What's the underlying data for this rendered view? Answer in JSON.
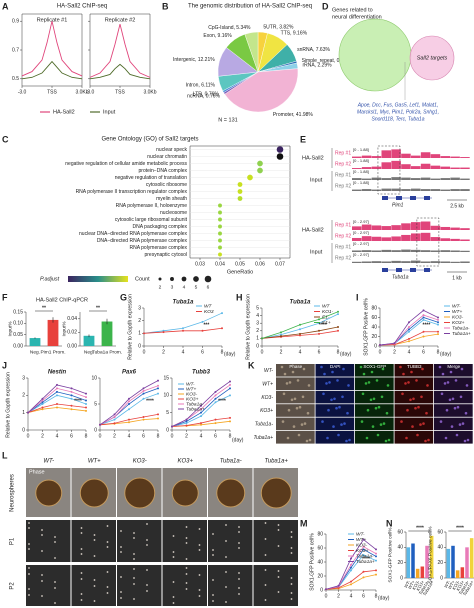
{
  "A": {
    "label": "A",
    "title": "HA-Sall2 ChIP-seq",
    "replicates": [
      "Replicate #1",
      "Replicate #2"
    ],
    "x": [
      -3,
      -2,
      -1,
      -0.5,
      0,
      0.5,
      1,
      2,
      3
    ],
    "xlim": [
      -3,
      3
    ],
    "xticks": [
      {
        "value": -3,
        "label": "-3.0"
      },
      {
        "value": 0,
        "label": "TSS"
      },
      {
        "value": 3,
        "label": "3.0Kb"
      }
    ],
    "ylim": [
      0.45,
      0.95
    ],
    "yticks": [
      0.5,
      0.7,
      0.9
    ],
    "series": [
      {
        "name": "HA-Sall2",
        "color": "#e0457b",
        "values": [
          [
            0.52,
            0.55,
            0.63,
            0.75,
            0.9,
            0.75,
            0.63,
            0.55,
            0.52
          ],
          [
            0.51,
            0.54,
            0.62,
            0.74,
            0.88,
            0.74,
            0.62,
            0.54,
            0.51
          ]
        ]
      },
      {
        "name": "Input",
        "color": "#4f6b2a",
        "values": [
          [
            0.5,
            0.51,
            0.54,
            0.58,
            0.62,
            0.58,
            0.54,
            0.51,
            0.5
          ],
          [
            0.5,
            0.51,
            0.53,
            0.57,
            0.6,
            0.57,
            0.53,
            0.51,
            0.5
          ]
        ]
      }
    ]
  },
  "B": {
    "label": "B",
    "type": "pie",
    "title": "The genomic distribution of HA-Sall2 ChIP-seq",
    "categories": [
      "5UTR",
      "TTS",
      "snRNA",
      "Simple_repeat",
      "rRNA",
      "Promoter",
      "ncRNA",
      "LTR",
      "Intron",
      "Intergenic",
      "Exon",
      "CpG-Island"
    ],
    "values": [
      3.82,
      9.16,
      7.63,
      0.76,
      2.29,
      41.98,
      0.76,
      0.76,
      6.11,
      12.21,
      9.16,
      5.34
    ],
    "value_labels": [
      "5UTR, 3.82%",
      "TTS, 9.16%",
      "snRNA, 7.63%",
      "Simple_repeat, 0.76%",
      "rRNA, 2.29%",
      "Promoter, 41.98%",
      "ncRNA, 0.76%",
      "LTR, 0.76%",
      "Intron, 6.11%",
      "Intergenic, 12.21%",
      "Exon, 9.16%",
      "CpG-Island, 5.34%"
    ],
    "colors": [
      "#f7d23e",
      "#f0e442",
      "#3fb0a8",
      "#2e6fb7",
      "#8ed1e8",
      "#f2b3d4",
      "#7a5cb8",
      "#4a90d9",
      "#5cc6c0",
      "#b8a9e3",
      "#7ac943",
      "#c3e68c"
    ],
    "total_label": "N = 131"
  },
  "C": {
    "label": "C",
    "title": "Gene Ontology (GO) of Sall2 targets",
    "categories": [
      "nuclear speck",
      "nuclear chromatin",
      "negative regulation of cellular amide metabolic process",
      "protein−DNA complex",
      "negative regulation of translation",
      "cytosolic ribosome",
      "RNA polymerase II transcription regulator complex",
      "myelin sheath",
      "RNA polymerase II, holoenzyme",
      "nucleosome",
      "cytosolic large ribosomal subunit",
      "DNA packaging complex",
      "nuclear DNA−directed RNA polymerase complex",
      "DNA−directed RNA polymerase complex",
      "RNA polymerase complex",
      "presynaptic cytosol"
    ],
    "values": [
      0.07,
      0.07,
      0.06,
      0.06,
      0.055,
      0.05,
      0.05,
      0.05,
      0.04,
      0.04,
      0.04,
      0.04,
      0.04,
      0.04,
      0.04,
      0.04
    ],
    "counts": [
      6,
      6,
      5,
      5,
      5,
      4,
      4,
      4,
      3,
      3,
      3,
      3,
      3,
      3,
      3,
      3
    ],
    "colors": [
      "#3b2460",
      "#111111",
      "#8fd14f",
      "#8fd14f",
      "#c8e020",
      "#c8e020",
      "#c8e020",
      "#b5de2b",
      "#9ad641",
      "#9ad641",
      "#9ad641",
      "#9ad641",
      "#9ad641",
      "#9ad641",
      "#9ad641",
      "#c8e020"
    ],
    "xlim": [
      0.025,
      0.075
    ],
    "xticks": [
      0.03,
      0.04,
      0.05,
      0.06,
      0.07
    ],
    "xlabel": "GeneRatio",
    "color_legend_title": "P.adjust",
    "size_legend_title": "Count",
    "size_legend": [
      2,
      3,
      4,
      5,
      6
    ]
  },
  "D": {
    "label": "D",
    "title_lines": [
      "Genes related to",
      "neural differentiation"
    ],
    "target_label": "Sall2 targets",
    "gene_lines": [
      "Apoe, Dcc, Fus, Gas5, Lef1, Malat1,",
      "Marcksl1, Myc, Pim1, Polr2a, Snhg1,",
      "Snord118, Terc, Tuba1a"
    ]
  },
  "E": {
    "label": "E",
    "groups": [
      {
        "factor": "HA-Sall2",
        "input": "Input",
        "gene": "Pim1",
        "scale": "2.5 kb",
        "ymax": 1.88,
        "tracks": [
          {
            "name": "Rep #1",
            "range": "[0 - 1.88]",
            "values": [
              0.3,
              0.5,
              0.4,
              1.6,
              1.8,
              0.9,
              0.5,
              1.2,
              0.8,
              0.4,
              0.3,
              0.2
            ]
          },
          {
            "name": "Rep #2",
            "range": "[0 - 1.88]",
            "values": [
              0.2,
              0.4,
              0.5,
              1.4,
              1.7,
              1,
              0.6,
              1.1,
              0.7,
              0.5,
              0.3,
              0.3
            ]
          },
          {
            "name": "Rep #1",
            "range": "[0 - 1.88]",
            "values": [
              0.4,
              0.3,
              0.5,
              0.4,
              0.6,
              0.5,
              0.4,
              0.5,
              0.3,
              0.4,
              0.5,
              0.3
            ]
          },
          {
            "name": "Rep #2",
            "range": "[0 - 1.88]",
            "values": [
              0.3,
              0.4,
              0.3,
              0.5,
              0.5,
              0.4,
              0.5,
              0.4,
              0.4,
              0.3,
              0.4,
              0.4
            ]
          }
        ]
      },
      {
        "factor": "HA-Sall2",
        "input": "Input",
        "gene": "Tuba1a",
        "scale": "1 kb",
        "ymax": 2.97,
        "tracks": [
          {
            "name": "Rep #1",
            "range": "[0 - 2.97]",
            "values": [
              1.2,
              1.8,
              1.5,
              1.3,
              1.6,
              2.2,
              2.6,
              2.8,
              1.4,
              1,
              0.8,
              0.6
            ]
          },
          {
            "name": "Rep #2",
            "range": "[0 - 2.97]",
            "values": [
              1,
              1.6,
              1.4,
              1.2,
              1.5,
              2,
              2.5,
              2.7,
              1.3,
              0.9,
              0.7,
              0.5
            ]
          },
          {
            "name": "Rep #1",
            "range": "[0 - 2.97]",
            "values": [
              0.5,
              0.6,
              0.5,
              0.7,
              0.6,
              0.8,
              0.7,
              0.6,
              0.5,
              0.6,
              0.5,
              0.4
            ]
          },
          {
            "name": "Rep #2",
            "range": "[0 - 2.97]",
            "values": [
              0.4,
              0.5,
              0.6,
              0.5,
              0.7,
              0.6,
              0.8,
              0.5,
              0.6,
              0.5,
              0.4,
              0.5
            ]
          }
        ]
      }
    ]
  },
  "F": {
    "label": "F",
    "title": "HA-Sall2 ChIP-qPCR",
    "charts": [
      {
        "ylabel": "Input%",
        "categories": [
          "Neg.",
          "Pim1 Prom."
        ],
        "values": [
          0.035,
          0.115
        ],
        "errors": [
          0.003,
          0.012
        ],
        "colors": [
          "#2bb5b0",
          "#e8413c"
        ],
        "ylim": [
          0,
          0.15
        ],
        "yticks": [
          {
            "value": 0,
            "label": "0.00"
          },
          0.05,
          {
            "value": 0.1,
            "label": "0.10"
          },
          0.15
        ],
        "annotation": "**"
      },
      {
        "ylabel": "Input%",
        "categories": [
          "Neg.",
          "Tuba1a Prom."
        ],
        "values": [
          0.015,
          0.036
        ],
        "errors": [
          0.002,
          0.004
        ],
        "colors": [
          "#2bb5b0",
          "#3cb44b"
        ],
        "ylim": [
          0,
          0.05
        ],
        "yticks": [
          {
            "value": 0,
            "label": "0.00"
          },
          0.02,
          0.04
        ],
        "annotation": "**"
      }
    ]
  },
  "G": {
    "label": "G",
    "title": "Tuba1a",
    "ylabel": "Relative to Gapdh expression",
    "xlabel": "(day)",
    "x": [
      0,
      2,
      4,
      6,
      8
    ],
    "xlim": [
      0,
      8
    ],
    "xticks": [
      0,
      2,
      4,
      6,
      8
    ],
    "ylim": [
      0,
      3
    ],
    "yticks": [
      0,
      1,
      2,
      3
    ],
    "annotation": "***",
    "series": [
      {
        "name": "WT",
        "color": "#5bb8e8",
        "values": [
          1,
          1.2,
          1.4,
          1.9,
          2.6
        ]
      },
      {
        "name": "KO3",
        "color": "#e8413c",
        "values": [
          1,
          1.1,
          1.2,
          1.2,
          1.4
        ]
      }
    ]
  },
  "H": {
    "label": "H",
    "title": "Tuba1a",
    "ylabel": "Relative to Gapdh expression",
    "xlabel": "(day)",
    "x": [
      0,
      2,
      4,
      6,
      8
    ],
    "xlim": [
      0,
      8
    ],
    "xticks": [
      0,
      2,
      4,
      6,
      8
    ],
    "ylim": [
      0,
      5
    ],
    "yticks": [
      0,
      1,
      2,
      3,
      4,
      5
    ],
    "annotation": "****",
    "series": [
      {
        "name": "WT",
        "color": "#5bb8e8",
        "values": [
          1,
          1.5,
          2.2,
          3,
          4.2
        ]
      },
      {
        "name": "KO1-",
        "color": "#e8413c",
        "values": [
          1,
          1.2,
          1.4,
          1.6,
          2
        ]
      },
      {
        "name": "E1-",
        "color": "#8b4513",
        "values": [
          1,
          1.3,
          1.6,
          2,
          2.5
        ]
      },
      {
        "name": "E1+",
        "color": "#3cb44b",
        "values": [
          1,
          1.8,
          2.8,
          3.5,
          4.5
        ]
      }
    ]
  },
  "I": {
    "label": "I",
    "ylabel": "SOX1-GFP Positive cell%",
    "xlabel": "(day)",
    "x": [
      0,
      2,
      4,
      6,
      8
    ],
    "xlim": [
      0,
      8
    ],
    "xticks": [
      0,
      2,
      4,
      6,
      8
    ],
    "ylim": [
      0,
      80
    ],
    "yticks": [
      0,
      20,
      40,
      60,
      80
    ],
    "annotation": "****",
    "series": [
      {
        "name": "WT-",
        "color": "#5bb8e8",
        "values": [
          2,
          5,
          30,
          55,
          45
        ]
      },
      {
        "name": "WT+",
        "color": "#1f5fbf",
        "values": [
          2,
          5,
          35,
          60,
          50
        ]
      },
      {
        "name": "KO3-",
        "color": "#f5a623",
        "values": [
          2,
          3,
          10,
          20,
          25
        ]
      },
      {
        "name": "KO3+",
        "color": "#e8413c",
        "values": [
          2,
          3,
          15,
          30,
          30
        ]
      },
      {
        "name": "Tuba1a-",
        "color": "#e87ab8",
        "values": [
          2,
          5,
          40,
          65,
          55
        ]
      },
      {
        "name": "Tuba1a+",
        "color": "#7b3fa0",
        "values": [
          2,
          6,
          50,
          75,
          60
        ]
      }
    ]
  },
  "J": {
    "label": "J",
    "ylabel": "Relative to Gapdh expression",
    "xlabel": "(day)",
    "x": [
      0,
      2,
      4,
      6,
      8
    ],
    "xlim": [
      0,
      8
    ],
    "xticks": [
      0,
      2,
      4,
      6,
      8
    ],
    "series": [
      {
        "name": "WT-",
        "color": "#5bb8e8"
      },
      {
        "name": "WT+",
        "color": "#1f5fbf"
      },
      {
        "name": "KO3-",
        "color": "#f5a623"
      },
      {
        "name": "KO3+",
        "color": "#e8413c"
      },
      {
        "name": "Tuba1a-",
        "color": "#e87ab8"
      },
      {
        "name": "Tuba1a+",
        "color": "#7b3fa0"
      }
    ],
    "charts": [
      {
        "title": "Nestin",
        "ylim": [
          0,
          3
        ],
        "yticks": [
          0,
          1,
          2,
          3
        ],
        "annotation": "****",
        "values": [
          [
            1,
            1.5,
            2,
            1.8,
            1.5
          ],
          [
            1,
            1.6,
            2.2,
            2,
            1.7
          ],
          [
            1,
            1.2,
            1.3,
            1.2,
            1.1
          ],
          [
            1,
            1.3,
            1.5,
            1.4,
            1.3
          ],
          [
            1,
            1.7,
            2.4,
            2.2,
            1.9
          ],
          [
            1,
            1.8,
            2.6,
            2.4,
            2.1
          ]
        ]
      },
      {
        "title": "Pax6",
        "ylim": [
          0,
          10
        ],
        "yticks": [
          0,
          5,
          10
        ],
        "annotation": "****",
        "values": [
          [
            1,
            2,
            4,
            6,
            7
          ],
          [
            1,
            2.5,
            5,
            7,
            8
          ],
          [
            1,
            1.2,
            1.5,
            2,
            2.2
          ],
          [
            1,
            1.3,
            2,
            2.5,
            3
          ],
          [
            1,
            2.5,
            5.5,
            7.5,
            8.5
          ],
          [
            1,
            3,
            6,
            8,
            9.5
          ]
        ]
      },
      {
        "title": "Tubb3",
        "ylim": [
          0,
          15
        ],
        "yticks": [
          0,
          5,
          10,
          15
        ],
        "annotation": "****",
        "values": [
          [
            1,
            2,
            4,
            8,
            10
          ],
          [
            1,
            2.5,
            5,
            9,
            12
          ],
          [
            1,
            1.2,
            1.5,
            2,
            2.5
          ],
          [
            1,
            1.3,
            2,
            3,
            3.5
          ],
          [
            1,
            3,
            6,
            10,
            13
          ],
          [
            1,
            3,
            7,
            11,
            14
          ]
        ]
      }
    ]
  },
  "K": {
    "label": "K",
    "columns": [
      "Phase",
      "DAPI",
      "SOX1-GFP",
      "TUBB3",
      "Merge"
    ],
    "rows": [
      "WT-",
      "WT+",
      "KO3-",
      "KO3+",
      "Tuba1a-",
      "Tuba1a+"
    ]
  },
  "L": {
    "label": "L",
    "columns": [
      "WT-",
      "WT+",
      "KO3-",
      "KO3+",
      "Tuba1a-",
      "Tuba1a+"
    ],
    "rows": [
      "Neurospheres",
      "P1",
      "P2"
    ],
    "image_label": "Phase"
  },
  "M": {
    "label": "M",
    "ylabel": "SOX1-GFP Positive cell%",
    "xlabel": "(day)",
    "x": [
      0,
      2,
      4,
      6,
      8
    ],
    "xlim": [
      0,
      8
    ],
    "xticks": [
      0,
      2,
      4,
      6,
      8
    ],
    "ylim": [
      0,
      80
    ],
    "yticks": [
      0,
      20,
      40,
      60,
      80
    ],
    "annotation": "****",
    "series": [
      {
        "name": "WT-",
        "color": "#5bb8e8",
        "values": [
          1,
          4,
          28,
          50,
          42
        ]
      },
      {
        "name": "WT+",
        "color": "#1f5fbf",
        "values": [
          1,
          5,
          32,
          58,
          48
        ]
      },
      {
        "name": "KO3-",
        "color": "#f5a623",
        "values": [
          1,
          2,
          8,
          18,
          22
        ]
      },
      {
        "name": "KO3+",
        "color": "#e8413c",
        "values": [
          1,
          3,
          12,
          26,
          28
        ]
      },
      {
        "name": "Tuba1a-",
        "color": "#e87ab8",
        "values": [
          1,
          5,
          36,
          62,
          52
        ]
      },
      {
        "name": "Tuba1a+",
        "color": "#7b3fa0",
        "values": [
          1,
          6,
          45,
          72,
          58
        ]
      }
    ]
  },
  "N": {
    "label": "N",
    "categories": [
      "WT-",
      "WT+",
      "KO3-",
      "KO3+",
      "Tuba1a-",
      "Tuba1a+"
    ],
    "colors": [
      "#5bb8e8",
      "#1f5fbf",
      "#f5a623",
      "#e8413c",
      "#e87ab8",
      "#f0d43a"
    ],
    "charts": [
      {
        "ylabel": "SOX1-GFP Positive cell%",
        "ylim": [
          0,
          60
        ],
        "yticks": [
          0,
          20,
          40,
          60
        ],
        "values": [
          40,
          45,
          12,
          15,
          42,
          55
        ],
        "annotation": "****"
      },
      {
        "ylabel": "SOX1/PAX6 Positive cell%",
        "ylim": [
          0,
          60
        ],
        "yticks": [
          0,
          20,
          40,
          60
        ],
        "values": [
          38,
          42,
          10,
          14,
          40,
          52
        ],
        "annotation": "****"
      }
    ]
  }
}
